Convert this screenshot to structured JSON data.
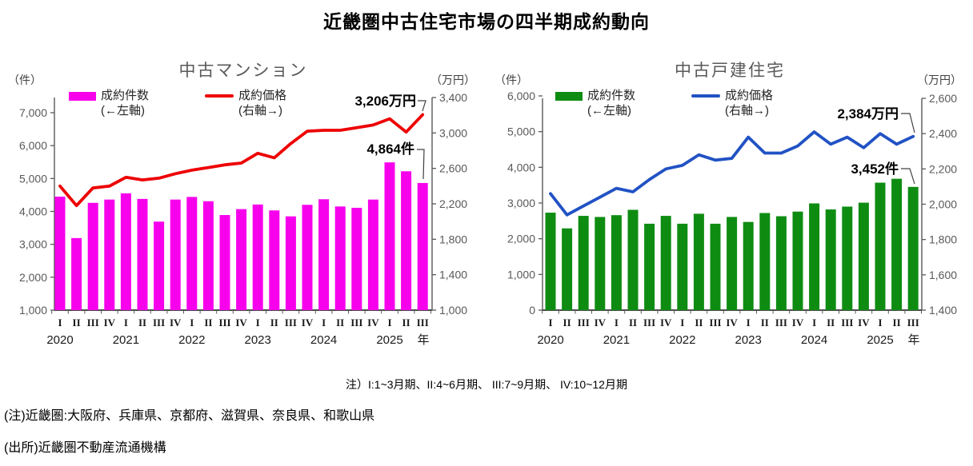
{
  "page": {
    "title": "近畿圏中古住宅市場の四半期成約動向"
  },
  "notes": {
    "quarter_note": "注）I:1~3月期、II:4~6月期、 III:7~9月期、 IV:10~12月期",
    "region_note": "(注)近畿圏:大阪府、兵庫県、京都府、滋賀県、奈良県、和歌山県",
    "source_note": "(出所)近畿圏不動産流通機構"
  },
  "chart_data": [
    {
      "type": "bar+line",
      "title": "中古マンション",
      "left_axis_unit": "（件）",
      "right_axis_unit": "（万円）",
      "legend": {
        "bars_label": "成約件数",
        "bars_sublabel": "(←左軸)",
        "line_label": "成約価格",
        "line_sublabel": "(右軸→)"
      },
      "categories_quarters": [
        "I",
        "II",
        "III",
        "IV",
        "I",
        "II",
        "III",
        "IV",
        "I",
        "II",
        "III",
        "IV",
        "I",
        "II",
        "III",
        "IV",
        "I",
        "II",
        "III",
        "IV",
        "I",
        "II",
        "III"
      ],
      "years": [
        "2020",
        "2021",
        "2022",
        "2023",
        "2024",
        "2025"
      ],
      "year_suffix": "年",
      "bars": {
        "name": "成約件数",
        "axis": "left",
        "values": [
          4450,
          3190,
          4260,
          4360,
          4550,
          4380,
          3690,
          4360,
          4440,
          4310,
          3890,
          4070,
          4210,
          4030,
          3850,
          4200,
          4370,
          4150,
          4110,
          4360,
          5490,
          5220,
          4864
        ]
      },
      "line": {
        "name": "成約価格",
        "axis": "right",
        "values": [
          2400,
          2180,
          2380,
          2400,
          2500,
          2470,
          2490,
          2540,
          2580,
          2610,
          2640,
          2660,
          2770,
          2720,
          2880,
          3020,
          3030,
          3030,
          3060,
          3090,
          3160,
          3010,
          3206
        ]
      },
      "left_axis": {
        "min": 1000,
        "max": 7000,
        "step": 1000,
        "ticks": [
          "7,000",
          "6,000",
          "5,000",
          "4,000",
          "3,000",
          "2,000",
          "1,000"
        ]
      },
      "right_axis": {
        "min": 1000,
        "max": 3400,
        "step": 400,
        "ticks": [
          "3,400",
          "3,000",
          "2,600",
          "2,200",
          "1,800",
          "1,400",
          "1,000"
        ]
      },
      "annotations": {
        "line_value_label": "3,206万円",
        "bar_value_label": "4,864件"
      },
      "colors": {
        "bar": "#f700ec",
        "line": "#ed0000"
      }
    },
    {
      "type": "bar+line",
      "title": "中古戸建住宅",
      "left_axis_unit": "（件）",
      "right_axis_unit": "（万円）",
      "legend": {
        "bars_label": "成約件数",
        "bars_sublabel": "(←左軸)",
        "line_label": "成約価格",
        "line_sublabel": "(右軸→)"
      },
      "categories_quarters": [
        "I",
        "II",
        "III",
        "IV",
        "I",
        "II",
        "III",
        "IV",
        "I",
        "II",
        "III",
        "IV",
        "I",
        "II",
        "III",
        "IV",
        "I",
        "II",
        "III",
        "IV",
        "I",
        "II",
        "III"
      ],
      "years": [
        "2020",
        "2021",
        "2022",
        "2023",
        "2024",
        "2025"
      ],
      "year_suffix": "年",
      "bars": {
        "name": "成約件数",
        "axis": "left",
        "values": [
          2730,
          2290,
          2640,
          2610,
          2660,
          2810,
          2420,
          2640,
          2420,
          2700,
          2420,
          2610,
          2470,
          2720,
          2630,
          2760,
          2990,
          2820,
          2900,
          3010,
          3570,
          3680,
          3452
        ]
      },
      "line": {
        "name": "成約価格",
        "axis": "right",
        "values": [
          2060,
          1940,
          1990,
          2040,
          2090,
          2070,
          2140,
          2200,
          2220,
          2280,
          2250,
          2260,
          2380,
          2290,
          2290,
          2330,
          2410,
          2340,
          2380,
          2320,
          2400,
          2340,
          2384
        ]
      },
      "left_axis": {
        "min": 0,
        "max": 6000,
        "step": 1000,
        "ticks": [
          "6,000",
          "5,000",
          "4,000",
          "3,000",
          "2,000",
          "1,000",
          "0"
        ]
      },
      "right_axis": {
        "min": 1400,
        "max": 2600,
        "step": 200,
        "ticks": [
          "2,600",
          "2,400",
          "2,200",
          "2,000",
          "1,800",
          "1,600",
          "1,400"
        ]
      },
      "annotations": {
        "line_value_label": "2,384万円",
        "bar_value_label": "3,452件"
      },
      "colors": {
        "bar": "#0e8c12",
        "line": "#2152c4"
      }
    }
  ]
}
